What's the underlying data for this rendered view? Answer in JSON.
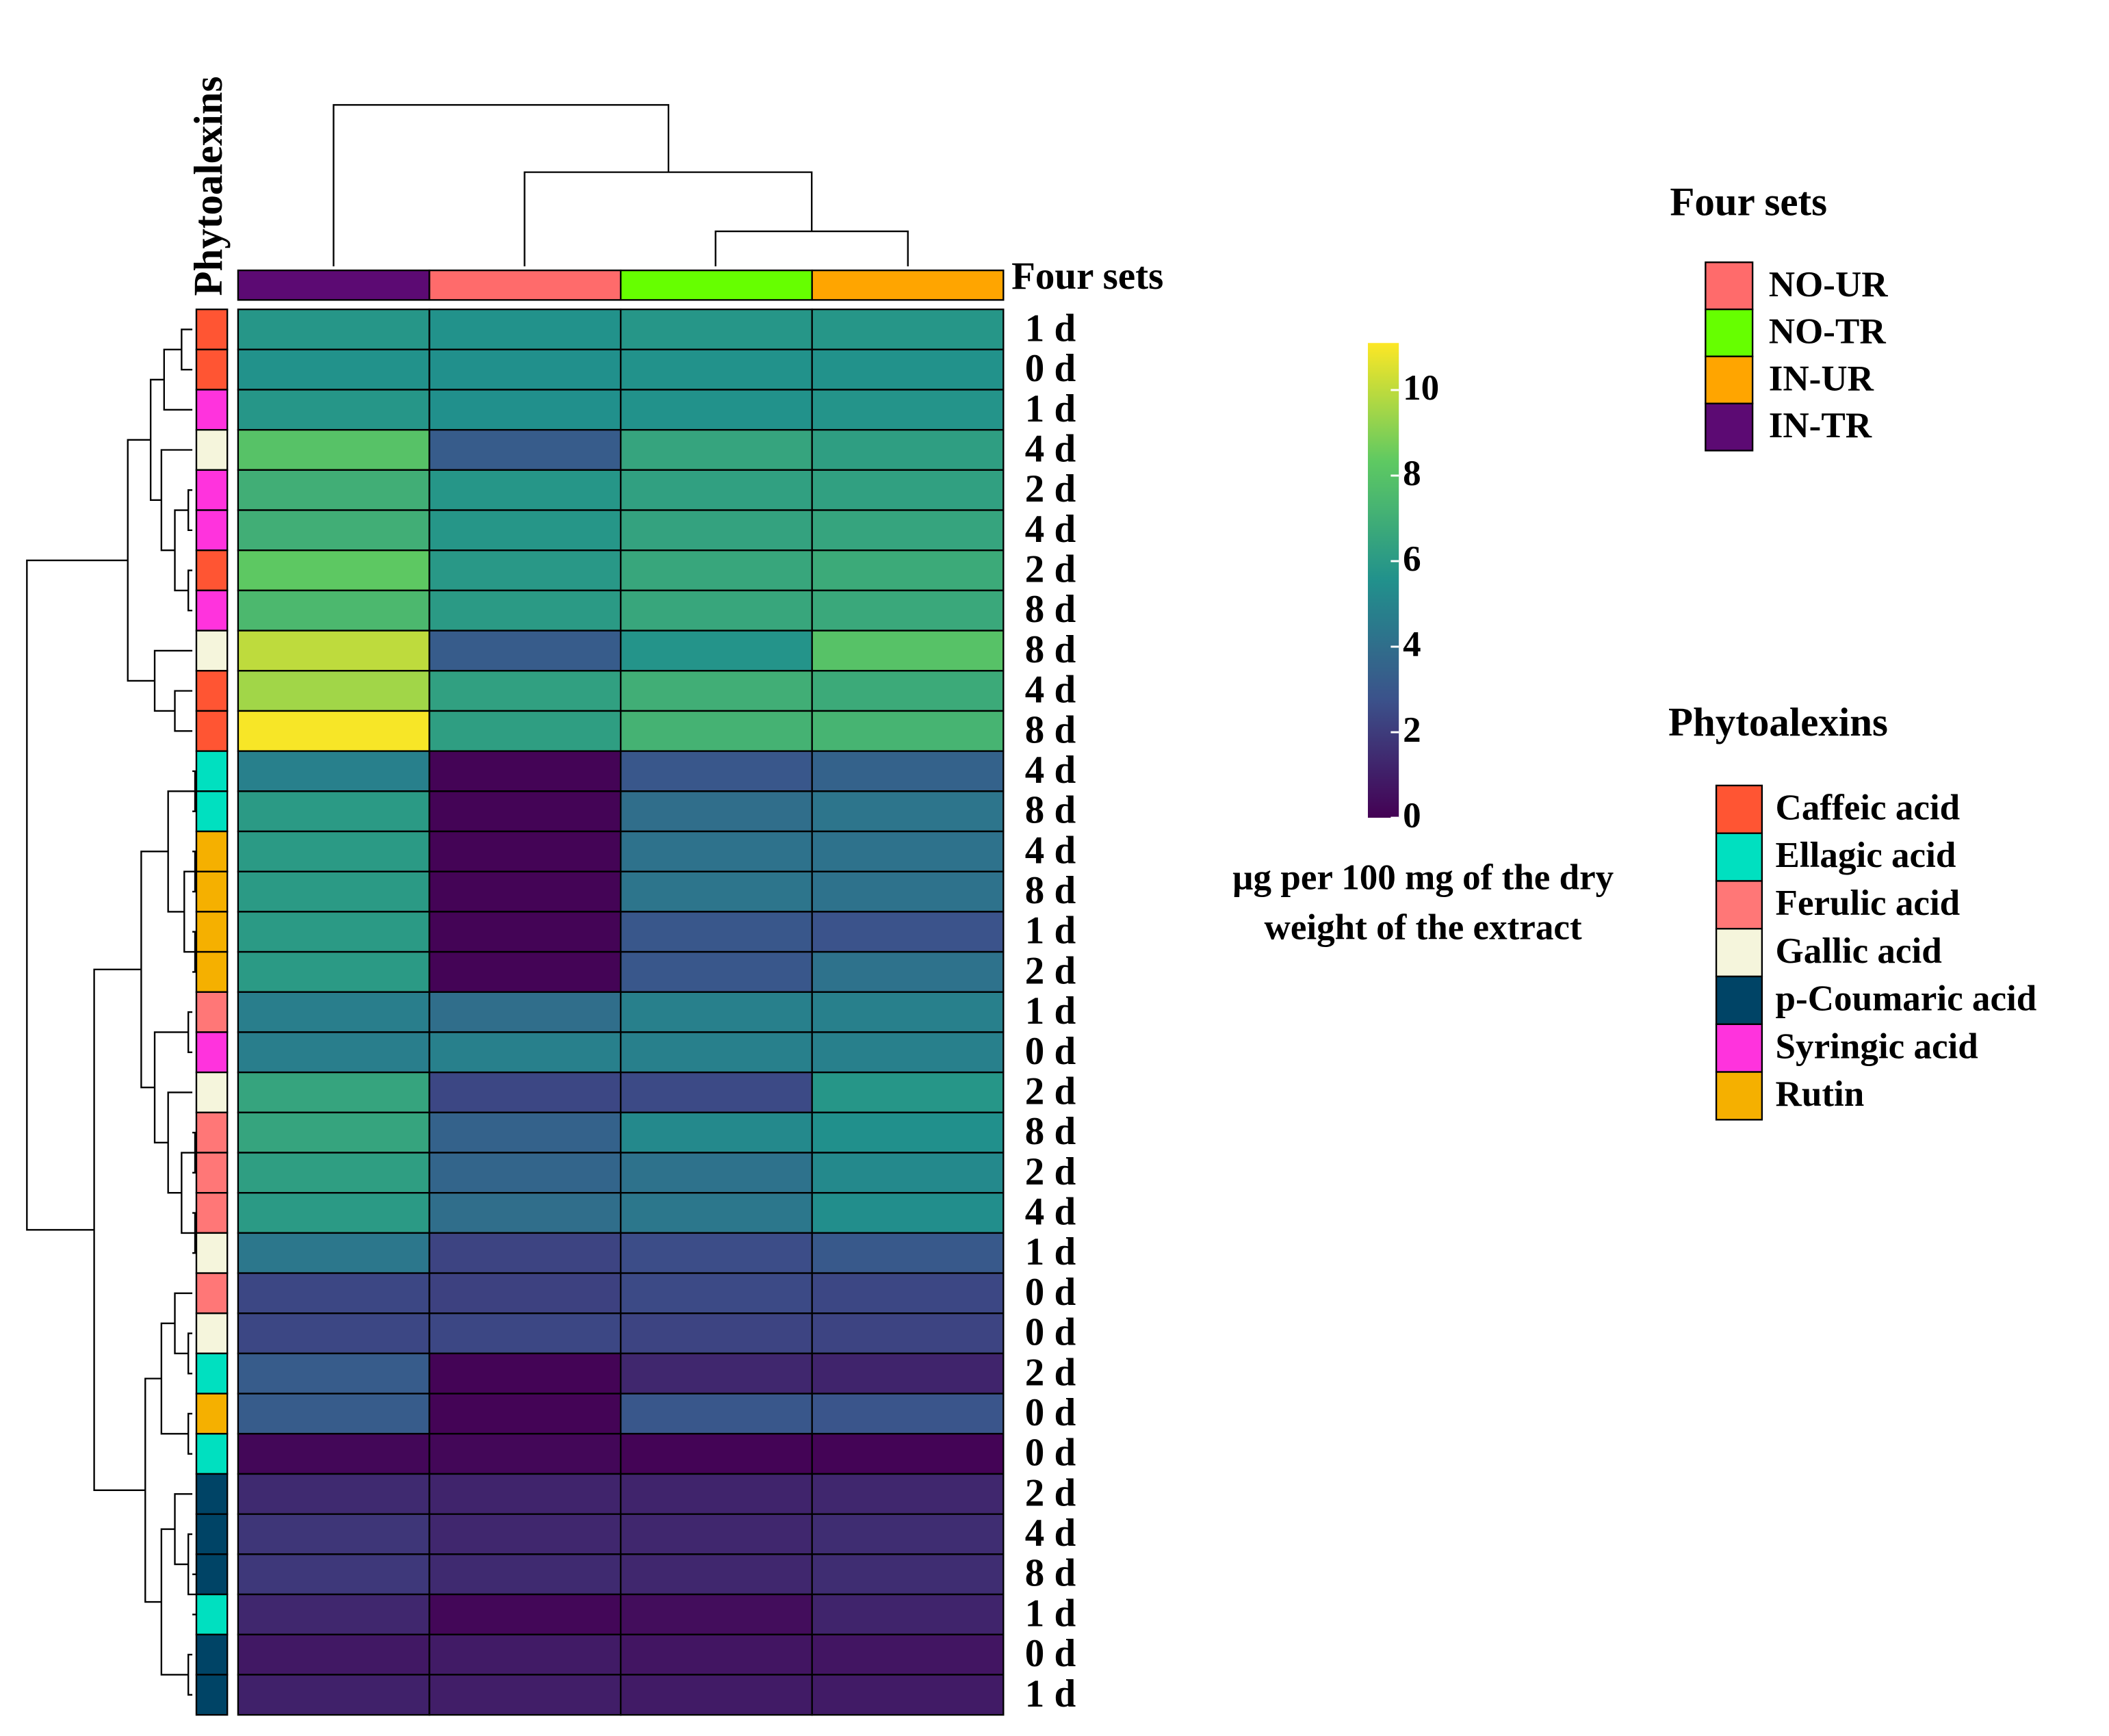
{
  "chart_data": {
    "type": "heatmap",
    "colormap": "viridis",
    "columns": [
      "IN-TR",
      "NO-UR",
      "NO-TR",
      "IN-UR"
    ],
    "column_annotation_title": "Four sets",
    "column_legend": [
      {
        "name": "NO-UR",
        "color": "#ff6b6b"
      },
      {
        "name": "NO-TR",
        "color": "#66ff00"
      },
      {
        "name": "IN-UR",
        "color": "#ffa500"
      },
      {
        "name": "IN-TR",
        "color": "#5c0a73"
      }
    ],
    "row_annotation_title": "Phytoalexins",
    "row_legend": [
      {
        "name": "Caffeic acid",
        "color": "#ff5533"
      },
      {
        "name": "Ellagic acid",
        "color": "#00e0c0"
      },
      {
        "name": "Ferulic acid",
        "color": "#ff7777"
      },
      {
        "name": "Gallic acid",
        "color": "#f5f5dc"
      },
      {
        "name": "p-Coumaric acid",
        "color": "#004466"
      },
      {
        "name": "Syringic acid",
        "color": "#ff33dd"
      },
      {
        "name": "Rutin",
        "color": "#f5b000"
      }
    ],
    "rows": [
      {
        "label": "1 d",
        "group": "Caffeic acid",
        "values": [
          5.8,
          5.6,
          5.8,
          5.8
        ]
      },
      {
        "label": "0 d",
        "group": "Caffeic acid",
        "values": [
          5.6,
          5.5,
          5.6,
          5.6
        ]
      },
      {
        "label": "1 d",
        "group": "Syringic acid",
        "values": [
          5.8,
          5.5,
          5.6,
          5.7
        ]
      },
      {
        "label": "4 d",
        "group": "Gallic acid",
        "values": [
          8,
          3.2,
          6.5,
          6.2
        ]
      },
      {
        "label": "2 d",
        "group": "Syringic acid",
        "values": [
          7,
          5.8,
          6.3,
          6.3
        ]
      },
      {
        "label": "4 d",
        "group": "Syringic acid",
        "values": [
          7,
          5.8,
          6.4,
          6.5
        ]
      },
      {
        "label": "2 d",
        "group": "Caffeic acid",
        "values": [
          8.3,
          5.9,
          6.6,
          6.8
        ]
      },
      {
        "label": "8 d",
        "group": "Syringic acid",
        "values": [
          7.5,
          6,
          6.6,
          6.7
        ]
      },
      {
        "label": "8 d",
        "group": "Gallic acid",
        "values": [
          10,
          3.2,
          5.7,
          8
        ]
      },
      {
        "label": "4 d",
        "group": "Caffeic acid",
        "values": [
          9.5,
          6.3,
          7,
          6.8
        ]
      },
      {
        "label": "8 d",
        "group": "Caffeic acid",
        "values": [
          11,
          6.2,
          7.2,
          7.3
        ]
      },
      {
        "label": "4 d",
        "group": "Ellagic acid",
        "values": [
          4.8,
          0.1,
          3,
          3.5
        ]
      },
      {
        "label": "8 d",
        "group": "Ellagic acid",
        "values": [
          6,
          0.1,
          4,
          4.3
        ]
      },
      {
        "label": "4 d",
        "group": "Rutin",
        "values": [
          6,
          0.1,
          4.2,
          4.2
        ]
      },
      {
        "label": "8 d",
        "group": "Rutin",
        "values": [
          6,
          0.1,
          4.3,
          4.2
        ]
      },
      {
        "label": "1 d",
        "group": "Rutin",
        "values": [
          6,
          0.1,
          3,
          2.8
        ]
      },
      {
        "label": "2 d",
        "group": "Rutin",
        "values": [
          6,
          0.1,
          3,
          4.2
        ]
      },
      {
        "label": "1 d",
        "group": "Ferulic acid",
        "values": [
          4.7,
          4,
          4.8,
          4.8
        ]
      },
      {
        "label": "0 d",
        "group": "Syringic acid",
        "values": [
          4.7,
          4.8,
          4.8,
          4.8
        ]
      },
      {
        "label": "2 d",
        "group": "Gallic acid",
        "values": [
          6.5,
          2.4,
          2.5,
          5.8
        ]
      },
      {
        "label": "8 d",
        "group": "Ferulic acid",
        "values": [
          6.5,
          3.5,
          5.2,
          5.5
        ]
      },
      {
        "label": "2 d",
        "group": "Ferulic acid",
        "values": [
          6.2,
          3.6,
          4.2,
          5.2
        ]
      },
      {
        "label": "4 d",
        "group": "Ferulic acid",
        "values": [
          6,
          4,
          4.4,
          5.4
        ]
      },
      {
        "label": "1 d",
        "group": "Gallic acid",
        "values": [
          4.4,
          2.3,
          2.6,
          3.1
        ]
      },
      {
        "label": "0 d",
        "group": "Ferulic acid",
        "values": [
          2.4,
          2.2,
          2.5,
          2.4
        ]
      },
      {
        "label": "0 d",
        "group": "Gallic acid",
        "values": [
          2.4,
          2.4,
          2.3,
          2.3
        ]
      },
      {
        "label": "2 d",
        "group": "Ellagic acid",
        "values": [
          3.2,
          0.1,
          1.3,
          1.2
        ]
      },
      {
        "label": "0 d",
        "group": "Rutin",
        "values": [
          3.2,
          0.1,
          3,
          2.9
        ]
      },
      {
        "label": "0 d",
        "group": "Ellagic acid",
        "values": [
          0.2,
          0.2,
          0.1,
          0.1
        ]
      },
      {
        "label": "2 d",
        "group": "p-Coumaric acid",
        "values": [
          1.4,
          1.2,
          1.2,
          1.3
        ]
      },
      {
        "label": "4 d",
        "group": "p-Coumaric acid",
        "values": [
          1.8,
          1.3,
          1.3,
          1.5
        ]
      },
      {
        "label": "8 d",
        "group": "p-Coumaric acid",
        "values": [
          1.9,
          1.4,
          1.3,
          1.5
        ]
      },
      {
        "label": "1 d",
        "group": "Ellagic acid",
        "values": [
          1.3,
          0.2,
          0.4,
          1.2
        ]
      },
      {
        "label": "0 d",
        "group": "p-Coumaric acid",
        "values": [
          0.8,
          0.9,
          0.7,
          0.7
        ]
      },
      {
        "label": "1 d",
        "group": "p-Coumaric acid",
        "values": [
          1.1,
          1.0,
          0.9,
          0.9
        ]
      }
    ],
    "colorbar": {
      "title": [
        "µg per 100 mg of the dry",
        "weight of the extract"
      ],
      "lim": [
        0,
        11.1
      ],
      "ticks": [
        0,
        2,
        4,
        6,
        8,
        10
      ]
    }
  }
}
